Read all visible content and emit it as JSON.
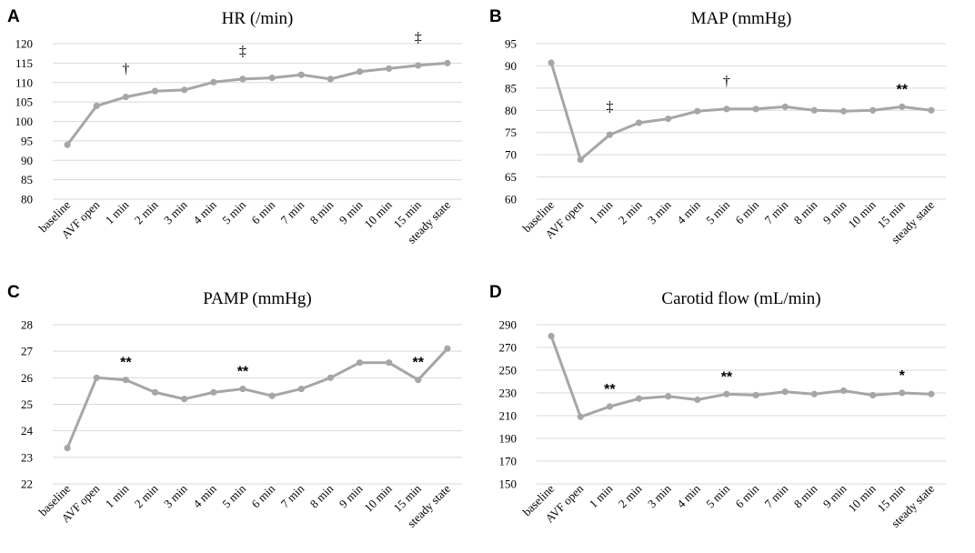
{
  "colors": {
    "series": "#a6a6a6",
    "grid": "#d9d9d9",
    "text": "#000000"
  },
  "chart_data": [
    {
      "panel": "A",
      "type": "line",
      "title": "HR (/min)",
      "categories": [
        "baseline",
        "AVF open",
        "1 min",
        "2 min",
        "3 min",
        "4 min",
        "5 min",
        "6 min",
        "7 min",
        "8 min",
        "9 min",
        "10 min",
        "15 min",
        "steady state"
      ],
      "values": [
        94,
        104,
        106.3,
        107.8,
        108.1,
        110.1,
        110.9,
        111.2,
        112,
        110.9,
        112.8,
        113.6,
        114.4,
        115
      ],
      "yticks": [
        80,
        85,
        90,
        95,
        100,
        105,
        110,
        115,
        120
      ],
      "ylim": [
        80,
        120
      ],
      "annotations": [
        {
          "category": "1 min",
          "text": "†"
        },
        {
          "category": "5 min",
          "text": "‡"
        },
        {
          "category": "15 min",
          "text": "‡"
        }
      ]
    },
    {
      "panel": "B",
      "type": "line",
      "title": "MAP (mmHg)",
      "categories": [
        "baseline",
        "AVF open",
        "1 min",
        "2 min",
        "3 min",
        "4 min",
        "5 min",
        "6 min",
        "7 min",
        "8 min",
        "9 min",
        "10 min",
        "15 min",
        "steady state"
      ],
      "values": [
        90.7,
        68.9,
        74.5,
        77.2,
        78.1,
        79.8,
        80.3,
        80.3,
        80.8,
        80,
        79.8,
        80,
        80.8,
        80
      ],
      "yticks": [
        60,
        65,
        70,
        75,
        80,
        85,
        90,
        95
      ],
      "ylim": [
        60,
        95
      ],
      "annotations": [
        {
          "category": "1 min",
          "text": "‡"
        },
        {
          "category": "5 min",
          "text": "†"
        },
        {
          "category": "15 min",
          "text": "**"
        }
      ]
    },
    {
      "panel": "C",
      "type": "line",
      "title": "PAMP (mmHg)",
      "categories": [
        "baseline",
        "AVF open",
        "1 min",
        "2 min",
        "3 min",
        "4 min",
        "5 min",
        "6 min",
        "7 min",
        "8 min",
        "9 min",
        "10 min",
        "15 min",
        "steady state"
      ],
      "values": [
        23.35,
        26,
        25.92,
        25.45,
        25.2,
        25.45,
        25.58,
        25.32,
        25.58,
        26,
        26.57,
        26.57,
        25.92,
        27.1
      ],
      "yticks": [
        22,
        23,
        24,
        25,
        26,
        27,
        28
      ],
      "ylim": [
        22,
        28
      ],
      "annotations": [
        {
          "category": "1 min",
          "text": "**"
        },
        {
          "category": "5 min",
          "text": "**"
        },
        {
          "category": "15 min",
          "text": "**"
        }
      ]
    },
    {
      "panel": "D",
      "type": "line",
      "title": "Carotid flow (mL/min)",
      "categories": [
        "baseline",
        "AVF open",
        "1 min",
        "2 min",
        "3 min",
        "4 min",
        "5 min",
        "6 min",
        "7 min",
        "8 min",
        "9 min",
        "10 min",
        "15 min",
        "steady state"
      ],
      "values": [
        280,
        209,
        218,
        225,
        227,
        224,
        229,
        228,
        231,
        229,
        232,
        228,
        230,
        229
      ],
      "yticks": [
        150,
        170,
        190,
        210,
        230,
        250,
        270,
        290
      ],
      "ylim": [
        150,
        290
      ],
      "annotations": [
        {
          "category": "1 min",
          "text": "**"
        },
        {
          "category": "5 min",
          "text": "**"
        },
        {
          "category": "15 min",
          "text": "*"
        }
      ]
    }
  ]
}
